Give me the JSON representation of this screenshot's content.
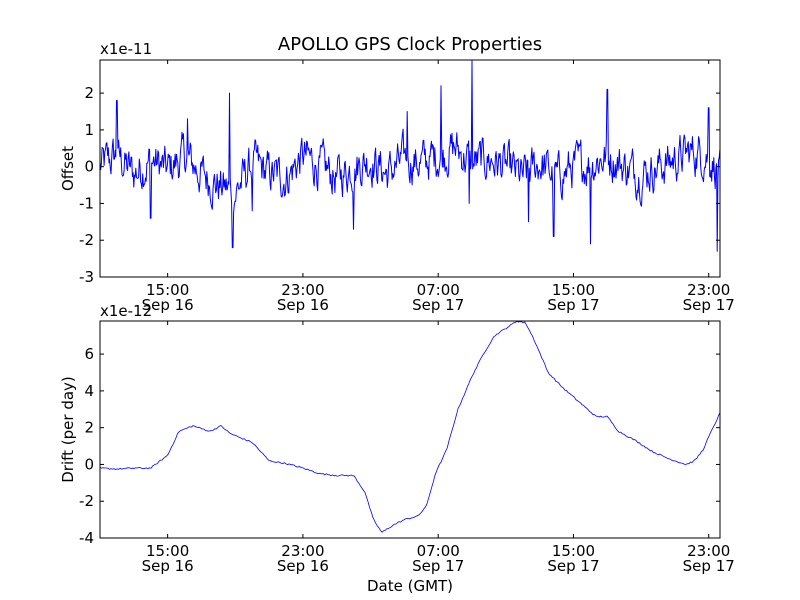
{
  "chart_data": [
    {
      "type": "line",
      "title": "APOLLO GPS Clock Properties",
      "ylabel": "Offset",
      "offset_text": "x1e-11",
      "ylim": [
        -3,
        2.9
      ],
      "yticks": [
        {
          "value": -3,
          "label": "-3"
        },
        {
          "value": -2,
          "label": "-2"
        },
        {
          "value": -1,
          "label": "-1"
        },
        {
          "value": 0,
          "label": "0"
        },
        {
          "value": 1,
          "label": "1"
        },
        {
          "value": 2,
          "label": "2"
        }
      ],
      "xlim": [
        "2000-09-16T11:00",
        "2000-09-17T23:40"
      ],
      "xticks": [
        {
          "value": "2000-09-16T15:00",
          "time": "15:00",
          "date": "Sep 16"
        },
        {
          "value": "2000-09-16T23:00",
          "time": "23:00",
          "date": "Sep 16"
        },
        {
          "value": "2000-09-17T07:00",
          "time": "07:00",
          "date": "Sep 17"
        },
        {
          "value": "2000-09-17T15:00",
          "time": "15:00",
          "date": "Sep 17"
        },
        {
          "value": "2000-09-17T23:00",
          "time": "23:00",
          "date": "Sep 17"
        }
      ],
      "series": [
        {
          "color": "#0000ff",
          "noise": {
            "amplitude": 0.45,
            "points": 900
          },
          "x": [
            "2000-09-16T11:00",
            "2000-09-16T12:00",
            "2000-09-16T13:00",
            "2000-09-16T14:00",
            "2000-09-16T15:00",
            "2000-09-16T16:00",
            "2000-09-16T17:00",
            "2000-09-16T18:00",
            "2000-09-16T19:00",
            "2000-09-16T20:00",
            "2000-09-16T21:00",
            "2000-09-16T22:00",
            "2000-09-16T23:00",
            "2000-09-17T00:00",
            "2000-09-17T01:00",
            "2000-09-17T02:00",
            "2000-09-17T03:00",
            "2000-09-17T04:00",
            "2000-09-17T05:00",
            "2000-09-17T06:00",
            "2000-09-17T07:00",
            "2000-09-17T08:00",
            "2000-09-17T09:00",
            "2000-09-17T10:00",
            "2000-09-17T11:00",
            "2000-09-17T12:00",
            "2000-09-17T13:00",
            "2000-09-17T14:00",
            "2000-09-17T15:00",
            "2000-09-17T16:00",
            "2000-09-17T17:00",
            "2000-09-17T18:00",
            "2000-09-17T19:00",
            "2000-09-17T20:00",
            "2000-09-17T21:00",
            "2000-09-17T22:00",
            "2000-09-17T23:00",
            "2000-09-17T23:40"
          ],
          "y": [
            0.0,
            0.3,
            -0.2,
            0.2,
            -0.1,
            0.3,
            -0.2,
            -0.5,
            -0.7,
            0.1,
            -0.2,
            -0.3,
            0.3,
            0.0,
            -0.3,
            0.0,
            0.2,
            -0.2,
            0.2,
            0.1,
            0.3,
            0.5,
            0.1,
            0.2,
            0.0,
            -0.3,
            0.1,
            -0.3,
            0.0,
            0.1,
            0.3,
            0.0,
            -0.2,
            0.0,
            0.2,
            0.4,
            0.3,
            -0.2
          ],
          "spikes": [
            {
              "x": "2000-09-16T12:00",
              "y": 1.8
            },
            {
              "x": "2000-09-16T14:00",
              "y": -1.4
            },
            {
              "x": "2000-09-16T16:10",
              "y": 1.3
            },
            {
              "x": "2000-09-16T18:40",
              "y": 2.0
            },
            {
              "x": "2000-09-16T18:50",
              "y": -2.2
            },
            {
              "x": "2000-09-16T20:00",
              "y": -1.2
            },
            {
              "x": "2000-09-17T02:00",
              "y": -1.7
            },
            {
              "x": "2000-09-17T05:10",
              "y": 1.5
            },
            {
              "x": "2000-09-17T07:10",
              "y": 2.2
            },
            {
              "x": "2000-09-17T08:50",
              "y": -1.0
            },
            {
              "x": "2000-09-17T09:00",
              "y": 2.9
            },
            {
              "x": "2000-09-17T12:20",
              "y": -1.5
            },
            {
              "x": "2000-09-17T13:50",
              "y": -1.9
            },
            {
              "x": "2000-09-17T16:00",
              "y": -2.1
            },
            {
              "x": "2000-09-17T17:00",
              "y": 2.1
            },
            {
              "x": "2000-09-17T23:00",
              "y": 1.6
            },
            {
              "x": "2000-09-17T23:30",
              "y": -2.3
            }
          ]
        }
      ]
    },
    {
      "type": "line",
      "ylabel": "Drift (per day)",
      "xlabel": "Date (GMT)",
      "offset_text": "x1e-12",
      "ylim": [
        -4,
        7.8
      ],
      "yticks": [
        {
          "value": -4,
          "label": "-4"
        },
        {
          "value": -2,
          "label": "-2"
        },
        {
          "value": 0,
          "label": "0"
        },
        {
          "value": 2,
          "label": "2"
        },
        {
          "value": 4,
          "label": "4"
        },
        {
          "value": 6,
          "label": "6"
        }
      ],
      "xlim": [
        "2000-09-16T11:00",
        "2000-09-17T23:40"
      ],
      "xticks": [
        {
          "value": "2000-09-16T15:00",
          "time": "15:00",
          "date": "Sep 16"
        },
        {
          "value": "2000-09-16T23:00",
          "time": "23:00",
          "date": "Sep 16"
        },
        {
          "value": "2000-09-17T07:00",
          "time": "07:00",
          "date": "Sep 17"
        },
        {
          "value": "2000-09-17T15:00",
          "time": "15:00",
          "date": "Sep 17"
        },
        {
          "value": "2000-09-17T23:00",
          "time": "23:00",
          "date": "Sep 17"
        }
      ],
      "series": [
        {
          "color": "#0000ff",
          "x": [
            "2000-09-16T11:00",
            "2000-09-16T12:00",
            "2000-09-16T13:00",
            "2000-09-16T14:00",
            "2000-09-16T15:00",
            "2000-09-16T15:40",
            "2000-09-16T16:30",
            "2000-09-16T17:30",
            "2000-09-16T18:10",
            "2000-09-16T18:40",
            "2000-09-16T19:10",
            "2000-09-16T20:00",
            "2000-09-16T21:00",
            "2000-09-16T22:00",
            "2000-09-16T23:00",
            "2000-09-17T00:00",
            "2000-09-17T01:00",
            "2000-09-17T02:00",
            "2000-09-17T02:40",
            "2000-09-17T03:10",
            "2000-09-17T03:40",
            "2000-09-17T04:20",
            "2000-09-17T05:00",
            "2000-09-17T05:50",
            "2000-09-17T06:20",
            "2000-09-17T06:50",
            "2000-09-17T07:30",
            "2000-09-17T08:10",
            "2000-09-17T09:00",
            "2000-09-17T09:40",
            "2000-09-17T10:20",
            "2000-09-17T11:00",
            "2000-09-17T11:40",
            "2000-09-17T12:10",
            "2000-09-17T12:40",
            "2000-09-17T13:30",
            "2000-09-17T14:20",
            "2000-09-17T15:20",
            "2000-09-17T16:20",
            "2000-09-17T17:00",
            "2000-09-17T17:40",
            "2000-09-17T18:40",
            "2000-09-17T19:40",
            "2000-09-17T20:40",
            "2000-09-17T21:40",
            "2000-09-17T22:10",
            "2000-09-17T22:40",
            "2000-09-17T23:00",
            "2000-09-17T23:40"
          ],
          "y": [
            -0.2,
            -0.25,
            -0.2,
            -0.2,
            0.5,
            1.8,
            2.1,
            1.8,
            2.1,
            1.7,
            1.5,
            1.2,
            0.2,
            0.05,
            -0.2,
            -0.5,
            -0.6,
            -0.6,
            -1.5,
            -3.0,
            -3.7,
            -3.3,
            -3.0,
            -2.8,
            -2.2,
            -0.5,
            0.8,
            3.0,
            4.8,
            6.0,
            7.0,
            7.4,
            7.8,
            7.7,
            6.8,
            5.0,
            4.2,
            3.4,
            2.6,
            2.6,
            1.8,
            1.3,
            0.7,
            0.3,
            0.0,
            0.2,
            0.8,
            1.5,
            2.8
          ]
        }
      ]
    }
  ]
}
